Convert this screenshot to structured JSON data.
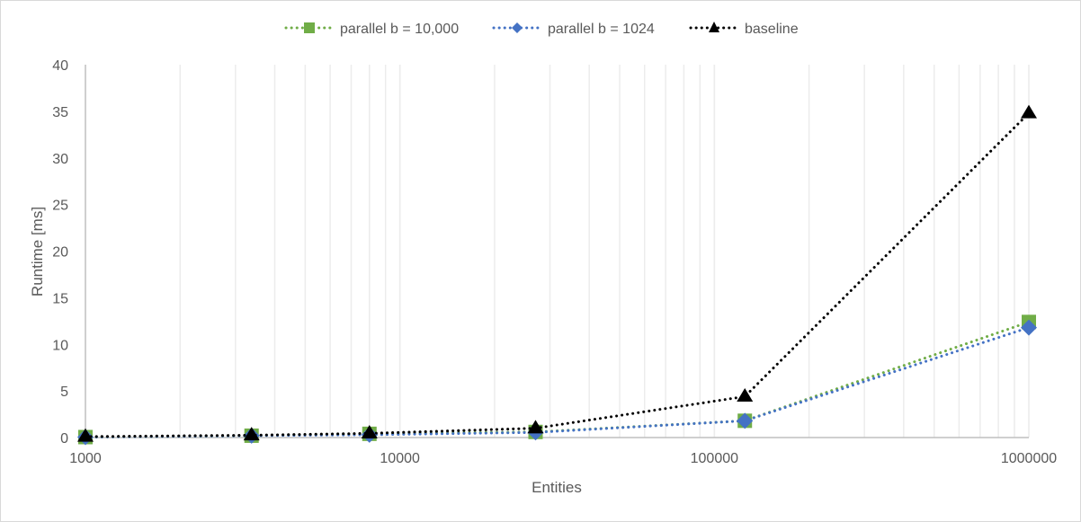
{
  "chart_data": {
    "type": "line",
    "title": "",
    "xlabel": "Entities",
    "ylabel": "Runtime [ms]",
    "xscale": "log",
    "xlim": [
      1000,
      1000000
    ],
    "ylim": [
      0,
      40
    ],
    "x_ticks": [
      "1000",
      "10000",
      "100000",
      "1000000"
    ],
    "y_ticks": [
      "0",
      "5",
      "10",
      "15",
      "20",
      "25",
      "30",
      "35",
      "40"
    ],
    "grid": {
      "vertical_minor": true,
      "horizontal": false
    },
    "legend_position": "top",
    "x": [
      1000,
      3375,
      8000,
      27000,
      125000,
      1000000
    ],
    "series": [
      {
        "name": "parallel b = 10,000",
        "color": "#70ad47",
        "marker": "square",
        "line": "dotted",
        "values": [
          0.05,
          0.2,
          0.4,
          0.6,
          1.8,
          12.4
        ]
      },
      {
        "name": "parallel b = 1024",
        "color": "#4472c4",
        "marker": "diamond",
        "line": "dotted",
        "values": [
          0.05,
          0.2,
          0.3,
          0.55,
          1.8,
          11.8
        ]
      },
      {
        "name": "baseline",
        "color": "#000000",
        "marker": "triangle",
        "line": "dotted",
        "values": [
          0.1,
          0.25,
          0.45,
          1.0,
          4.4,
          34.8
        ]
      }
    ]
  },
  "colors": {
    "axis": "#bfbfbf",
    "grid": "#ececec",
    "text": "#595959",
    "border": "#d9d9d9"
  }
}
